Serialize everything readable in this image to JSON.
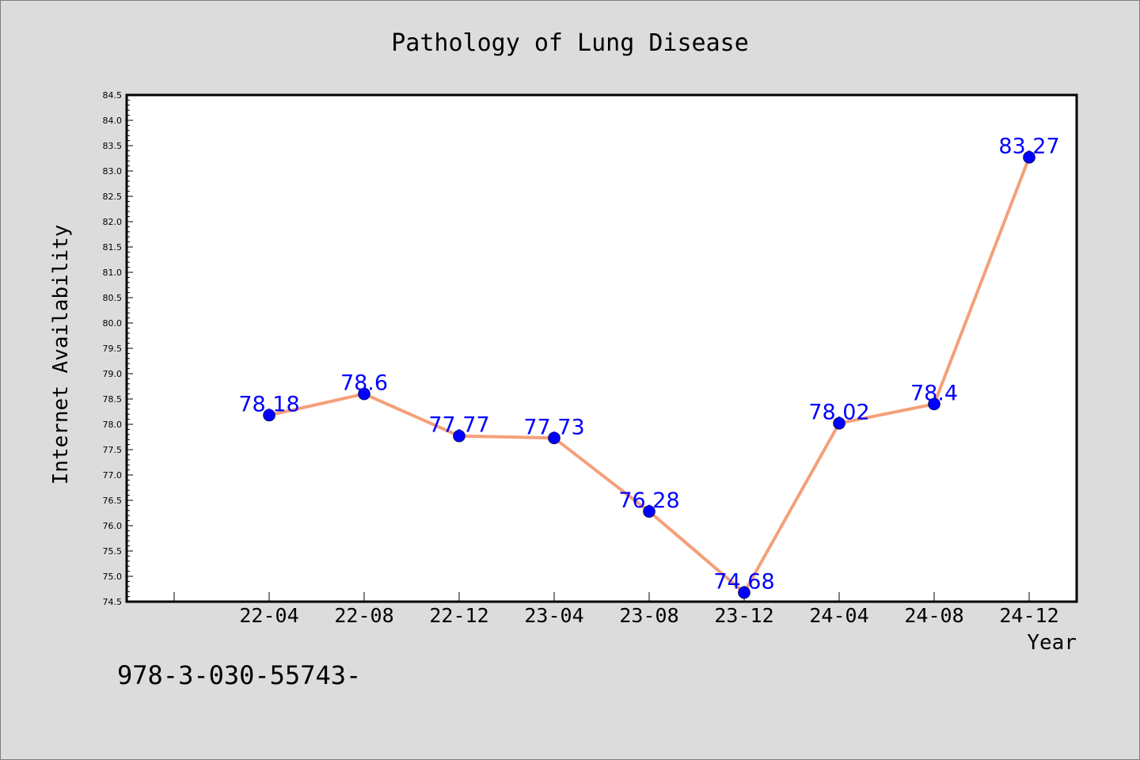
{
  "chart_data": {
    "type": "line",
    "title": "Pathology of Lung Disease",
    "xlabel": "Year",
    "ylabel": "Internet Availability",
    "categories": [
      "22-04",
      "22-08",
      "22-12",
      "23-04",
      "23-08",
      "23-12",
      "24-04",
      "24-08",
      "24-12"
    ],
    "series": [
      {
        "values": [
          78.18,
          78.6,
          77.77,
          77.73,
          76.28,
          74.68,
          78.02,
          78.4,
          83.27
        ],
        "labels": [
          "78.18",
          "78.6",
          "77.77",
          "77.73",
          "76.28",
          "74.68",
          "78.02",
          "78.4",
          "83.27"
        ],
        "line_color": "#f4a07a",
        "marker_color": "#0000ff"
      }
    ],
    "ylim": [
      74.5,
      84.5
    ],
    "yticks": [
      "74.5",
      "75.0",
      "75.5",
      "76.0",
      "76.5",
      "77.0",
      "77.5",
      "78.0",
      "78.5",
      "79.0",
      "79.5",
      "80.0",
      "80.5",
      "81.0",
      "81.5",
      "82.0",
      "82.5",
      "83.0",
      "83.5",
      "84.0",
      "84.5"
    ],
    "grid": false,
    "legend": "none"
  },
  "caption": "978-3-030-55743-",
  "colors": {
    "background": "#dcdcdc",
    "plot_background": "#ffffff",
    "line": "#f4a07a",
    "marker": "#0000ff",
    "data_label": "#0000ff"
  }
}
